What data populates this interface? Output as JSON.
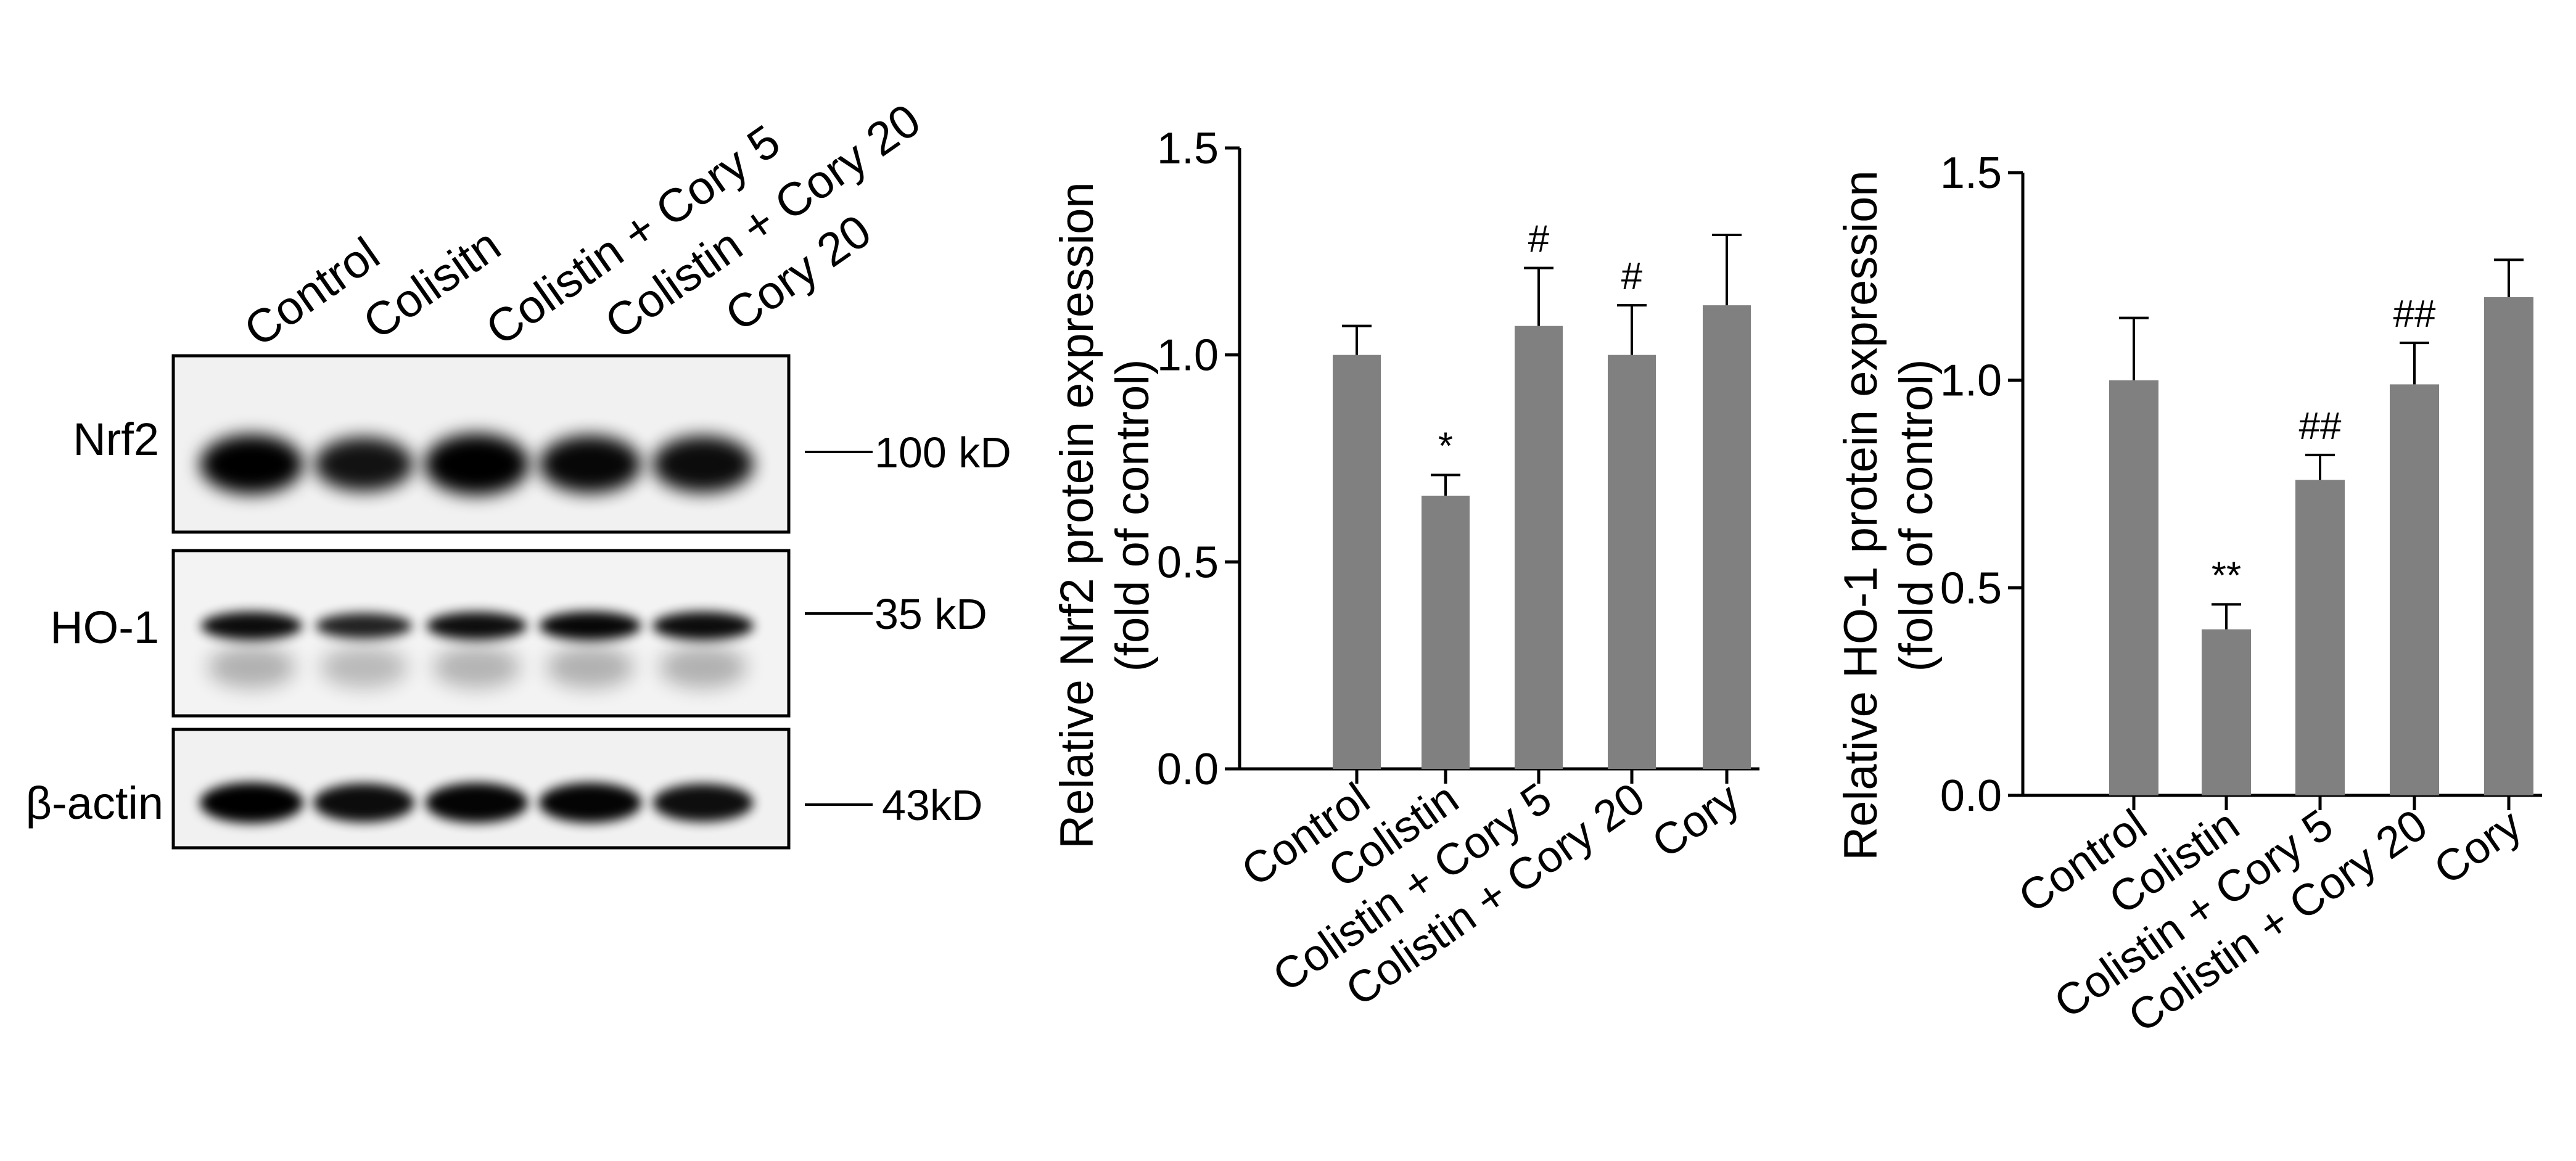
{
  "blot": {
    "lanes": [
      "Control",
      "Colisitn",
      "Colistin + Cory 5",
      "Colistin + Cory 20",
      "Cory 20"
    ],
    "rows": [
      {
        "label": "Nrf2",
        "marker": "100 kD"
      },
      {
        "label": "HO-1",
        "marker": "35 kD"
      },
      {
        "label": "β-actin",
        "marker": "43kD"
      }
    ],
    "band_intensity": {
      "nrf2": [
        1.0,
        0.72,
        1.1,
        0.9,
        0.85
      ],
      "ho1": [
        0.85,
        0.55,
        0.8,
        0.9,
        0.85
      ],
      "actin": [
        1.0,
        0.85,
        0.95,
        0.95,
        0.8
      ]
    }
  },
  "chart_data": [
    {
      "type": "bar",
      "categories": [
        "Control",
        "Colistin",
        "Colistin + Cory 5",
        "Colistin + Cory 20",
        "Cory"
      ],
      "values": [
        1.0,
        0.66,
        1.07,
        1.0,
        1.12
      ],
      "errors": [
        0.07,
        0.05,
        0.14,
        0.12,
        0.17
      ],
      "annotations": [
        "",
        "*",
        "#",
        "#",
        ""
      ],
      "ylabel": "Relative Nrf2 protein expression",
      "ylabel2": "(fold of control)",
      "ylim": [
        0,
        1.5
      ],
      "yticks": [
        "0.0",
        "0.5",
        "1.0",
        "1.5"
      ],
      "bar_color": "#808080"
    },
    {
      "type": "bar",
      "categories": [
        "Control",
        "Colistin",
        "Colistin + Cory 5",
        "Colistin + Cory 20",
        "Cory"
      ],
      "values": [
        1.0,
        0.4,
        0.76,
        0.99,
        1.2
      ],
      "errors": [
        0.15,
        0.06,
        0.06,
        0.1,
        0.09
      ],
      "annotations": [
        "",
        "**",
        "##",
        "##",
        ""
      ],
      "ylabel": "Relative HO-1 protein expression",
      "ylabel2": "(fold of control)",
      "ylim": [
        0,
        1.5
      ],
      "yticks": [
        "0.0",
        "0.5",
        "1.0",
        "1.5"
      ],
      "bar_color": "#808080"
    }
  ]
}
